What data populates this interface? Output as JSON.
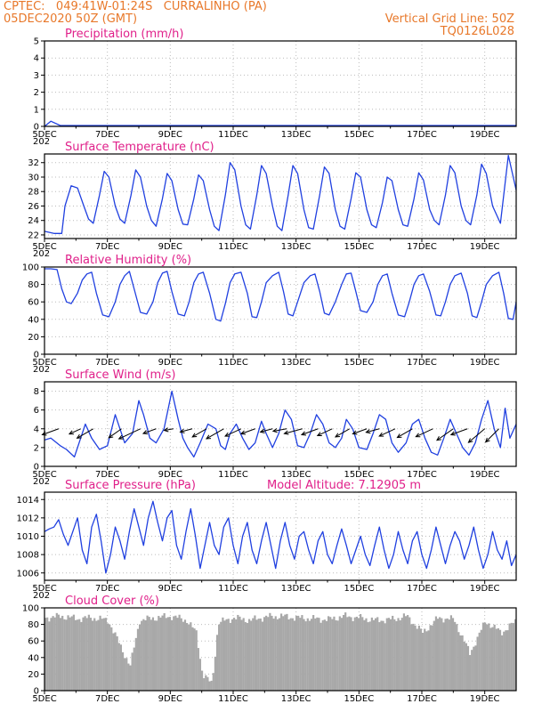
{
  "header": {
    "line1": "CPTEC:   049:41W-01:24S   CURRALINHO (PA)",
    "line2": "05DEC2020 50Z (GMT)",
    "grid_note": "Vertical Grid Line: 50Z",
    "model_id": "TQ0126L028"
  },
  "x_axis": {
    "ticks": [
      "5DEC",
      "7DEC",
      "9DEC",
      "11DEC",
      "13DEC",
      "15DEC",
      "17DEC",
      "19DEC"
    ],
    "stub": "202"
  },
  "colors": {
    "series": "#2040e0",
    "bars": "#a8a8a8",
    "title": "#e0208a",
    "header": "#e8782a"
  },
  "chart_data": [
    {
      "type": "line",
      "title": "Precipitation (mm/h)",
      "ylim": [
        0,
        5
      ],
      "yticks": [
        0,
        1,
        2,
        3,
        4,
        5
      ],
      "x": [
        0,
        0.2,
        0.5,
        15
      ],
      "values": [
        0,
        0.3,
        0.05,
        0.05
      ]
    },
    {
      "type": "line",
      "title": "Surface Temperature (nC)",
      "ylim": [
        21.5,
        33.2
      ],
      "yticks": [
        22,
        24,
        26,
        28,
        30,
        32
      ],
      "x": [
        0.0,
        0.3,
        0.55,
        0.65,
        0.85,
        1.05,
        1.25,
        1.4,
        1.55,
        1.75,
        1.9,
        2.05,
        2.25,
        2.4,
        2.55,
        2.75,
        2.9,
        3.05,
        3.25,
        3.4,
        3.55,
        3.75,
        3.9,
        4.05,
        4.25,
        4.4,
        4.55,
        4.75,
        4.9,
        5.05,
        5.25,
        5.4,
        5.55,
        5.75,
        5.9,
        6.05,
        6.25,
        6.4,
        6.55,
        6.75,
        6.9,
        7.05,
        7.25,
        7.4,
        7.55,
        7.75,
        7.9,
        8.05,
        8.25,
        8.4,
        8.55,
        8.75,
        8.9,
        9.05,
        9.25,
        9.4,
        9.55,
        9.75,
        9.9,
        10.05,
        10.25,
        10.4,
        10.55,
        10.75,
        10.9,
        11.05,
        11.25,
        11.4,
        11.55,
        11.75,
        11.9,
        12.05,
        12.25,
        12.4,
        12.55,
        12.75,
        12.9,
        13.05,
        13.25,
        13.4,
        13.55,
        13.75,
        13.9,
        14.05,
        14.25,
        14.5,
        14.75,
        15.0
      ],
      "values": [
        22.5,
        22.2,
        22.2,
        26.0,
        28.8,
        28.5,
        26.0,
        24.2,
        23.6,
        27.5,
        30.8,
        30.0,
        26.0,
        24.2,
        23.6,
        27.5,
        31.0,
        30.0,
        26.0,
        24.0,
        23.2,
        27.0,
        30.5,
        29.5,
        25.5,
        23.5,
        23.4,
        27.0,
        30.3,
        29.5,
        25.5,
        23.2,
        22.6,
        27.5,
        32.0,
        31.0,
        26.0,
        23.4,
        22.8,
        27.5,
        31.6,
        30.5,
        26.0,
        23.2,
        22.6,
        27.5,
        31.6,
        30.5,
        25.5,
        23.0,
        22.8,
        27.5,
        31.4,
        30.5,
        25.5,
        23.2,
        22.8,
        27.0,
        30.6,
        30.0,
        25.5,
        23.4,
        23.0,
        26.5,
        30.0,
        29.5,
        25.5,
        23.4,
        23.2,
        27.0,
        30.6,
        29.6,
        25.5,
        24.0,
        23.4,
        27.5,
        31.6,
        30.6,
        26.0,
        24.0,
        23.4,
        27.5,
        31.8,
        30.5,
        26.0,
        23.6,
        33.0,
        28.2
      ]
    },
    {
      "type": "line",
      "title": "Relative Humidity (%)",
      "ylim": [
        0,
        100
      ],
      "yticks": [
        0,
        20,
        40,
        60,
        80,
        100
      ],
      "x": [
        0.0,
        0.2,
        0.4,
        0.55,
        0.7,
        0.85,
        1.05,
        1.2,
        1.35,
        1.5,
        1.65,
        1.85,
        2.05,
        2.25,
        2.4,
        2.55,
        2.7,
        2.85,
        3.05,
        3.25,
        3.45,
        3.6,
        3.75,
        3.9,
        4.05,
        4.25,
        4.45,
        4.6,
        4.75,
        4.9,
        5.05,
        5.25,
        5.45,
        5.6,
        5.75,
        5.9,
        6.05,
        6.25,
        6.45,
        6.6,
        6.75,
        6.9,
        7.05,
        7.25,
        7.45,
        7.6,
        7.75,
        7.9,
        8.05,
        8.25,
        8.45,
        8.6,
        8.75,
        8.9,
        9.05,
        9.25,
        9.45,
        9.6,
        9.75,
        9.9,
        10.05,
        10.25,
        10.45,
        10.6,
        10.75,
        10.9,
        11.05,
        11.25,
        11.45,
        11.6,
        11.75,
        11.9,
        12.05,
        12.25,
        12.45,
        12.6,
        12.75,
        12.9,
        13.05,
        13.25,
        13.45,
        13.6,
        13.75,
        13.9,
        14.05,
        14.25,
        14.45,
        14.6,
        14.75,
        14.9,
        15.0
      ],
      "values": [
        98,
        98,
        97,
        75,
        60,
        58,
        70,
        85,
        92,
        94,
        70,
        45,
        43,
        60,
        80,
        90,
        95,
        75,
        48,
        46,
        60,
        82,
        93,
        95,
        72,
        46,
        44,
        60,
        82,
        92,
        94,
        70,
        40,
        38,
        58,
        82,
        92,
        94,
        70,
        43,
        42,
        60,
        82,
        90,
        94,
        72,
        46,
        44,
        60,
        82,
        90,
        92,
        72,
        47,
        45,
        60,
        80,
        92,
        93,
        72,
        50,
        48,
        60,
        80,
        90,
        92,
        70,
        45,
        43,
        60,
        80,
        90,
        92,
        72,
        45,
        44,
        60,
        80,
        90,
        93,
        70,
        44,
        42,
        60,
        80,
        90,
        94,
        70,
        41,
        40,
        60
      ]
    },
    {
      "type": "line",
      "title": "Surface Wind (m/s)",
      "ylim": [
        0,
        9
      ],
      "yticks": [
        0,
        2,
        4,
        6,
        8
      ],
      "x": [
        0.0,
        0.2,
        0.5,
        0.7,
        0.95,
        1.1,
        1.3,
        1.5,
        1.75,
        2.0,
        2.25,
        2.4,
        2.55,
        2.8,
        3.0,
        3.15,
        3.35,
        3.55,
        3.8,
        4.05,
        4.25,
        4.4,
        4.55,
        4.75,
        4.95,
        5.2,
        5.45,
        5.6,
        5.75,
        5.9,
        6.1,
        6.3,
        6.5,
        6.7,
        6.9,
        7.05,
        7.25,
        7.45,
        7.65,
        7.85,
        8.05,
        8.25,
        8.45,
        8.65,
        8.85,
        9.05,
        9.25,
        9.45,
        9.6,
        9.8,
        10.0,
        10.25,
        10.45,
        10.65,
        10.85,
        11.05,
        11.25,
        11.5,
        11.7,
        11.9,
        12.1,
        12.3,
        12.5,
        12.7,
        12.9,
        13.1,
        13.3,
        13.5,
        13.7,
        13.9,
        14.1,
        14.3,
        14.5,
        14.65,
        14.8,
        15.0
      ],
      "values": [
        2.8,
        3.0,
        2.2,
        1.8,
        1.0,
        2.5,
        4.5,
        3.0,
        1.8,
        2.2,
        5.5,
        4.0,
        2.5,
        3.5,
        7.0,
        5.5,
        3.0,
        2.5,
        4.0,
        8.0,
        5.0,
        3.0,
        2.0,
        1.0,
        2.5,
        4.5,
        4.0,
        2.2,
        1.8,
        3.5,
        4.5,
        3.0,
        1.8,
        2.5,
        4.8,
        3.5,
        2.0,
        3.5,
        6.0,
        5.0,
        2.2,
        2.0,
        3.5,
        5.5,
        4.5,
        2.5,
        2.0,
        3.0,
        5.0,
        4.0,
        2.0,
        1.8,
        3.5,
        5.5,
        5.0,
        2.5,
        1.5,
        2.5,
        4.5,
        5.0,
        3.0,
        1.5,
        1.2,
        3.0,
        5.0,
        3.5,
        2.0,
        1.2,
        2.5,
        5.0,
        7.0,
        4.0,
        2.0,
        6.2,
        3.0,
        4.5
      ],
      "arrows": {
        "x": [
          0.45,
          1.15,
          1.55,
          2.45,
          3.05,
          3.55,
          4.1,
          4.7,
          5.15,
          5.7,
          6.25,
          6.7,
          7.25,
          7.7,
          8.2,
          8.7,
          9.15,
          9.7,
          10.25,
          10.65,
          11.15,
          11.7,
          12.35,
          13.0,
          13.45,
          14.0,
          14.45
        ],
        "dir_deg": [
          20,
          25,
          30,
          35,
          25,
          20,
          10,
          15,
          30,
          30,
          25,
          20,
          15,
          10,
          15,
          20,
          25,
          30,
          20,
          15,
          25,
          30,
          25,
          35,
          20,
          40,
          45
        ],
        "speed": [
          2.8,
          2.0,
          3.0,
          2.5,
          3.8,
          2.2,
          1.5,
          2.0,
          2.6,
          3.2,
          2.8,
          2.4,
          2.0,
          2.2,
          3.0,
          2.8,
          2.6,
          2.6,
          2.4,
          2.2,
          2.8,
          2.8,
          3.0,
          3.2,
          2.8,
          3.4,
          3.0
        ]
      }
    },
    {
      "type": "line",
      "title": "Surface Pressure (hPa)",
      "annotation": "Model Altitude: 7.12905 m",
      "ylim": [
        1005.2,
        1014.8
      ],
      "yticks": [
        1006,
        1008,
        1010,
        1012,
        1014
      ],
      "x": [
        0.0,
        0.15,
        0.3,
        0.45,
        0.6,
        0.75,
        0.9,
        1.05,
        1.2,
        1.35,
        1.5,
        1.65,
        1.8,
        1.95,
        2.1,
        2.25,
        2.4,
        2.55,
        2.7,
        2.85,
        3.0,
        3.15,
        3.3,
        3.45,
        3.6,
        3.75,
        3.9,
        4.05,
        4.2,
        4.35,
        4.5,
        4.65,
        4.8,
        4.95,
        5.1,
        5.25,
        5.4,
        5.55,
        5.7,
        5.85,
        6.0,
        6.15,
        6.3,
        6.45,
        6.6,
        6.75,
        6.9,
        7.05,
        7.2,
        7.35,
        7.5,
        7.65,
        7.8,
        7.95,
        8.1,
        8.25,
        8.4,
        8.55,
        8.7,
        8.85,
        9.0,
        9.15,
        9.3,
        9.45,
        9.6,
        9.75,
        9.9,
        10.05,
        10.2,
        10.35,
        10.5,
        10.65,
        10.8,
        10.95,
        11.1,
        11.25,
        11.4,
        11.55,
        11.7,
        11.85,
        12.0,
        12.15,
        12.3,
        12.45,
        12.6,
        12.75,
        12.9,
        13.05,
        13.2,
        13.35,
        13.5,
        13.65,
        13.8,
        13.95,
        14.1,
        14.25,
        14.4,
        14.55,
        14.7,
        14.85,
        15.0
      ],
      "values": [
        1010.5,
        1010.8,
        1011.0,
        1011.8,
        1010.2,
        1009.0,
        1010.5,
        1012.0,
        1008.5,
        1007.0,
        1011.0,
        1012.4,
        1009.5,
        1006.0,
        1008.0,
        1011.0,
        1009.5,
        1007.5,
        1010.5,
        1013.0,
        1011.0,
        1009.0,
        1012.0,
        1013.8,
        1011.5,
        1009.5,
        1012.0,
        1012.8,
        1009.0,
        1007.5,
        1010.5,
        1013.0,
        1010.0,
        1006.5,
        1009.0,
        1011.5,
        1009.0,
        1008.0,
        1011.0,
        1012.0,
        1009.0,
        1007.0,
        1010.0,
        1011.5,
        1008.5,
        1007.0,
        1009.5,
        1011.5,
        1009.0,
        1006.5,
        1009.5,
        1011.5,
        1009.0,
        1007.5,
        1010.0,
        1010.5,
        1008.5,
        1007.0,
        1009.5,
        1010.5,
        1008.0,
        1007.0,
        1009.0,
        1010.8,
        1009.0,
        1007.0,
        1008.5,
        1010.0,
        1008.0,
        1006.8,
        1009.0,
        1011.0,
        1008.5,
        1006.5,
        1008.0,
        1010.5,
        1008.5,
        1007.0,
        1009.5,
        1010.5,
        1008.0,
        1006.5,
        1008.5,
        1011.0,
        1009.0,
        1007.0,
        1009.0,
        1010.5,
        1009.5,
        1007.5,
        1009.0,
        1011.0,
        1008.5,
        1006.5,
        1008.0,
        1010.5,
        1008.5,
        1007.5,
        1009.5,
        1006.8,
        1008.0
      ]
    },
    {
      "type": "bar",
      "title": "Cloud Cover (%)",
      "ylim": [
        0,
        100
      ],
      "yticks": [
        0,
        20,
        40,
        60,
        80,
        100
      ],
      "x": [
        0.0,
        0.5,
        1.0,
        1.5,
        2.0,
        2.5,
        2.7,
        3.0,
        3.5,
        4.0,
        4.5,
        4.8,
        5.0,
        5.3,
        5.5,
        6.0,
        6.5,
        7.0,
        7.5,
        8.0,
        8.5,
        9.0,
        9.5,
        10.0,
        10.5,
        11.0,
        11.5,
        12.0,
        12.5,
        13.0,
        13.5,
        14.0,
        14.5,
        15.0
      ],
      "values": [
        88,
        90,
        87,
        88,
        85,
        45,
        30,
        85,
        88,
        90,
        85,
        70,
        20,
        8,
        82,
        88,
        85,
        89,
        90,
        88,
        87,
        86,
        90,
        88,
        85,
        86,
        90,
        70,
        88,
        86,
        45,
        84,
        70,
        85
      ]
    }
  ]
}
